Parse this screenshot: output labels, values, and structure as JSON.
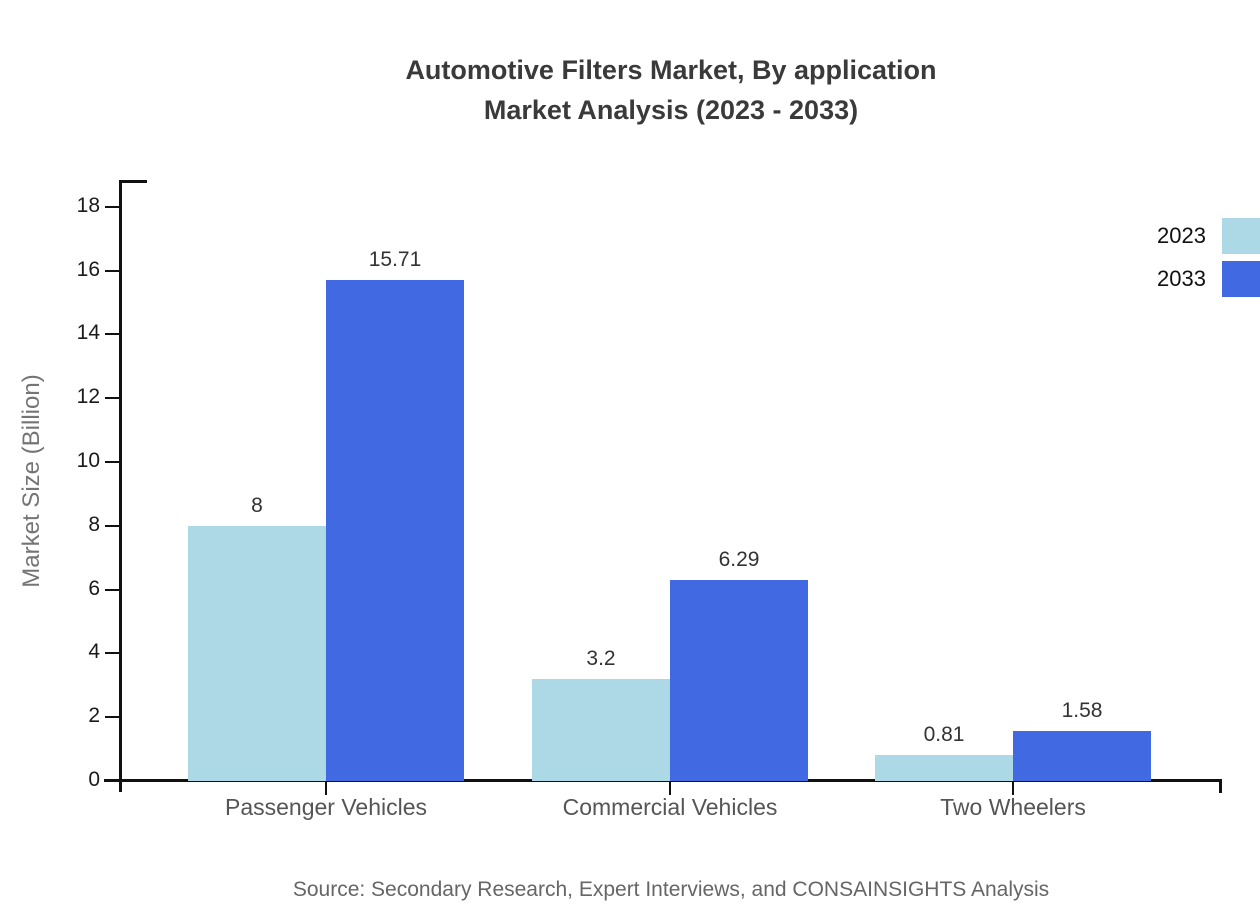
{
  "title": {
    "line1": "Automotive Filters Market, By application",
    "line2": "Market Analysis (2023 - 2033)"
  },
  "source": "Source: Secondary Research, Expert Interviews, and CONSAINSIGHTS Analysis",
  "legend": {
    "items": [
      {
        "label": "2023",
        "color": "#ADD8E6"
      },
      {
        "label": "2033",
        "color": "#4169E1"
      }
    ]
  },
  "chart_data": {
    "type": "bar",
    "title": "Automotive Filters Market, By application Market Analysis (2023 - 2033)",
    "categories": [
      "Passenger Vehicles",
      "Commercial Vehicles",
      "Two Wheelers"
    ],
    "series": [
      {
        "name": "2023",
        "color": "#ADD8E6",
        "values": [
          8,
          3.2,
          0.81
        ],
        "labels": [
          "8",
          "3.2",
          "0.81"
        ]
      },
      {
        "name": "2033",
        "color": "#4169E1",
        "values": [
          15.71,
          6.29,
          1.58
        ],
        "labels": [
          "15.71",
          "6.29",
          "1.58"
        ]
      }
    ],
    "xlabel": "",
    "ylabel": "Market Size (Billion)",
    "ylim": [
      0,
      18.8
    ],
    "yticks": [
      0,
      2,
      4,
      6,
      8,
      10,
      12,
      14,
      16,
      18
    ],
    "grid": false,
    "legend_position": "top-right"
  },
  "colors": {
    "series_2023": "#ADD8E6",
    "series_2033": "#4169E1",
    "axis": "#111111",
    "title_text": "#3a3a3a",
    "tick_text": "#1a1a1a",
    "category_text": "#555555",
    "ylabel_text": "#757575",
    "value_label_text": "#333333",
    "source_text": "#666666",
    "background": "#ffffff"
  }
}
